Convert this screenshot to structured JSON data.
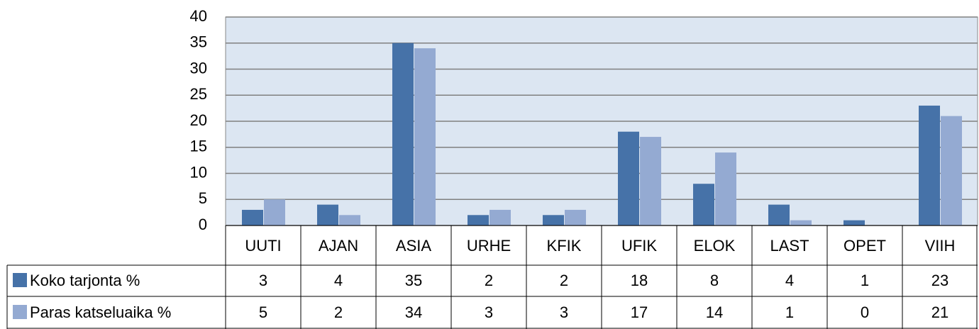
{
  "chart_data": {
    "type": "bar",
    "categories": [
      "UUTI",
      "AJAN",
      "ASIA",
      "URHE",
      "KFIK",
      "UFIK",
      "ELOK",
      "LAST",
      "OPET",
      "VIIH"
    ],
    "series": [
      {
        "name": "Koko tarjonta %",
        "color": "#4672a8",
        "values": [
          3,
          4,
          35,
          2,
          2,
          18,
          8,
          4,
          1,
          23
        ]
      },
      {
        "name": "Paras katseluaika %",
        "color": "#94aad2",
        "values": [
          5,
          2,
          34,
          3,
          3,
          17,
          14,
          1,
          0,
          21
        ]
      }
    ],
    "ylim": [
      0,
      40
    ],
    "yticks": [
      0,
      5,
      10,
      15,
      20,
      25,
      30,
      35,
      40
    ],
    "grid": true,
    "data_table": true
  }
}
